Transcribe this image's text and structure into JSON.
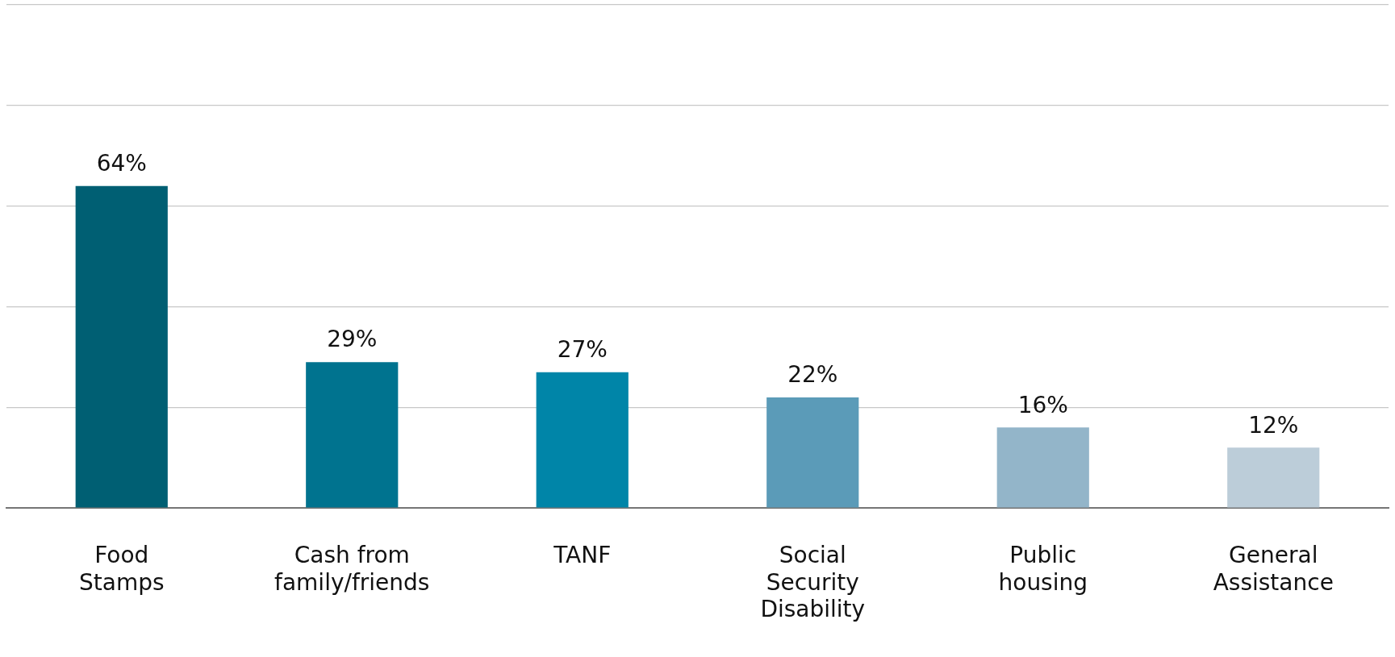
{
  "chart_data": {
    "type": "bar",
    "categories": [
      "Food Stamps",
      "Cash from family/friends",
      "TANF",
      "Social Security Disability",
      "Public housing",
      "General Assistance"
    ],
    "values": [
      64,
      29,
      27,
      22,
      16,
      12
    ],
    "colors": [
      "#005f73",
      "#00738f",
      "#0085a8",
      "#5b9bb8",
      "#93b5c9",
      "#bccdd9"
    ],
    "value_labels": [
      "64%",
      "29%",
      "27%",
      "22%",
      "16%",
      "12%"
    ],
    "ylim": [
      0,
      100
    ],
    "yticks": [
      0,
      20,
      40,
      60,
      80,
      100
    ],
    "grid": "y",
    "tick_labels": "x",
    "legend": false
  }
}
